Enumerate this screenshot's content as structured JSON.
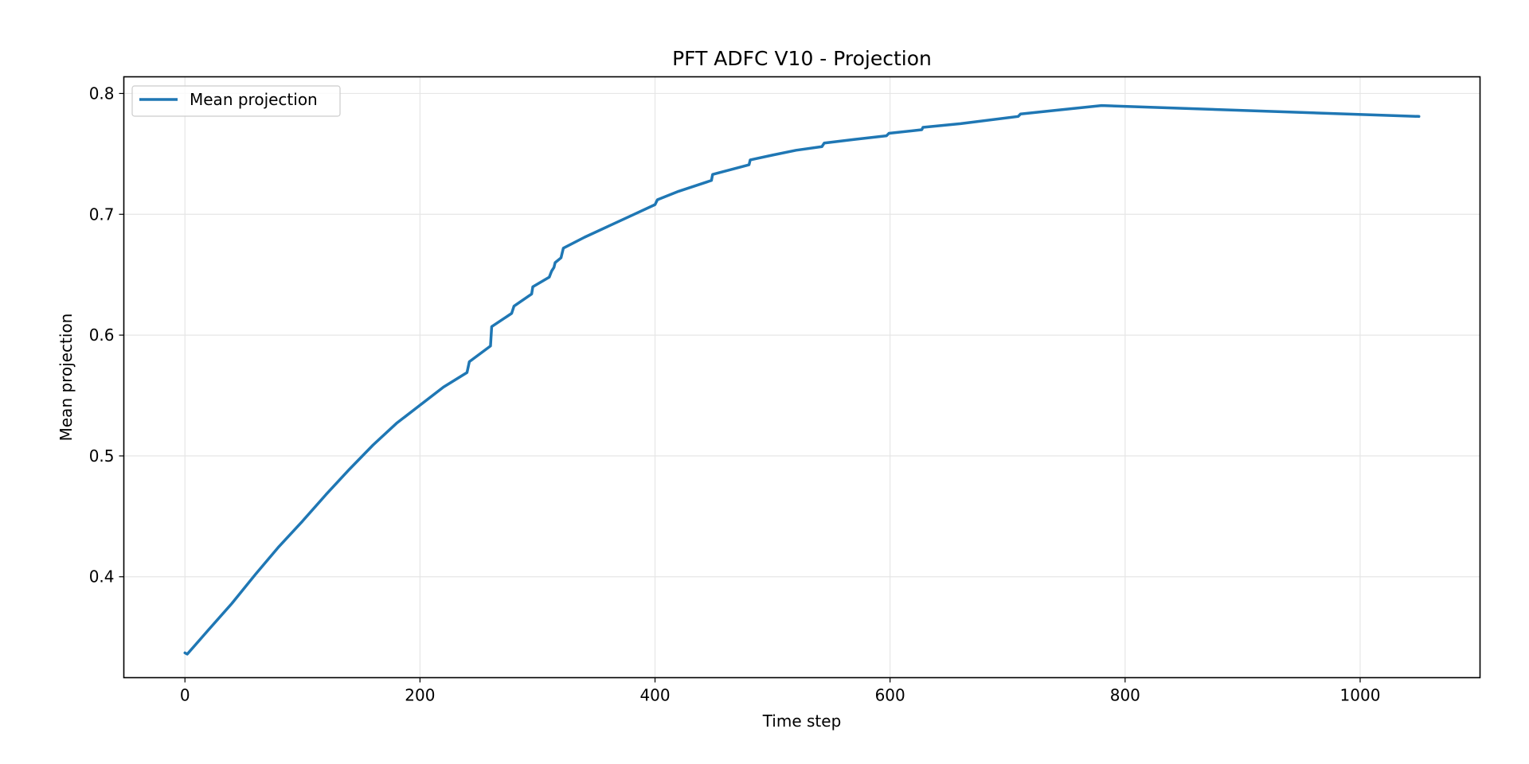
{
  "chart_data": {
    "type": "line",
    "title": "PFT ADFC V10 - Projection",
    "xlabel": "Time step",
    "ylabel": "Mean projection",
    "xlim": [
      -52,
      1102
    ],
    "ylim": [
      0.3165,
      0.8138
    ],
    "xticks": [
      0,
      200,
      400,
      600,
      800,
      1000
    ],
    "xtick_labels": [
      "0",
      "200",
      "400",
      "600",
      "800",
      "1000"
    ],
    "yticks": [
      0.4,
      0.5,
      0.6,
      0.7,
      0.8
    ],
    "ytick_labels": [
      "0.4",
      "0.5",
      "0.6",
      "0.7",
      "0.8"
    ],
    "grid": true,
    "legend_position": "top-left",
    "colors": {
      "series": "#1f77b4",
      "grid": "#e6e6e6",
      "axes": "#000000"
    },
    "series": [
      {
        "name": "Mean projection",
        "x": [
          0,
          2,
          20,
          40,
          60,
          80,
          100,
          120,
          140,
          160,
          180,
          200,
          220,
          240,
          242,
          260,
          261,
          278,
          280,
          295,
          296,
          310,
          312,
          314,
          315,
          320,
          322,
          340,
          360,
          380,
          400,
          402,
          420,
          448,
          449,
          480,
          481,
          500,
          520,
          542,
          544,
          570,
          597,
          599,
          627,
          628,
          660,
          709,
          711,
          740,
          780,
          1050
        ],
        "y": [
          0.337,
          0.336,
          0.356,
          0.378,
          0.402,
          0.425,
          0.446,
          0.468,
          0.489,
          0.509,
          0.527,
          0.542,
          0.557,
          0.569,
          0.578,
          0.591,
          0.607,
          0.618,
          0.624,
          0.634,
          0.64,
          0.648,
          0.653,
          0.656,
          0.66,
          0.664,
          0.672,
          0.681,
          0.69,
          0.699,
          0.708,
          0.712,
          0.719,
          0.728,
          0.733,
          0.741,
          0.745,
          0.749,
          0.753,
          0.756,
          0.759,
          0.762,
          0.765,
          0.767,
          0.77,
          0.772,
          0.775,
          0.781,
          0.783,
          0.786,
          0.79,
          0.781
        ]
      }
    ]
  }
}
